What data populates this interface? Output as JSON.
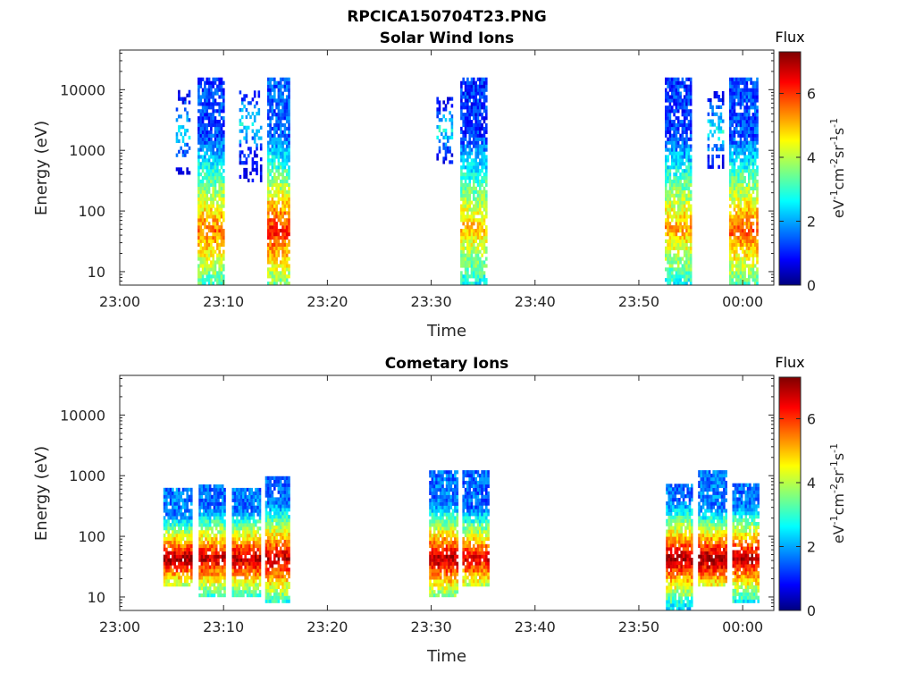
{
  "figure_title": "RPCICA150704T23.PNG",
  "colors": {
    "axis": "#262626",
    "background": "#ffffff",
    "colormap": [
      "#00007f",
      "#0000ff",
      "#007fff",
      "#00ffff",
      "#7fff7f",
      "#ffff00",
      "#ff7f00",
      "#ff0000",
      "#7f0000"
    ]
  },
  "chart_data": [
    {
      "type": "heatmap",
      "title": "Solar Wind Ions",
      "xlabel": "Time",
      "ylabel": "Energy (eV)",
      "x_ticks": [
        "23:00",
        "23:10",
        "23:20",
        "23:30",
        "23:40",
        "23:50",
        "00:00"
      ],
      "x_range_minutes": [
        0,
        63
      ],
      "y_ticks": [
        "10",
        "100",
        "1000",
        "10000"
      ],
      "y_scale": "log",
      "y_range_eV": [
        6,
        45000
      ],
      "colorbar": {
        "label": "Flux",
        "unit": "eV-1cm-2sr-1s-1",
        "ticks": [
          "0",
          "2",
          "4",
          "6"
        ],
        "range": [
          0,
          7.3
        ]
      },
      "blobs": [
        {
          "t_start": 5.4,
          "t_end": 6.8,
          "e_low": 400,
          "e_high": 9000,
          "peak_flux": 2.6,
          "peak_energy": 2000,
          "density": 0.35
        },
        {
          "t_start": 7.5,
          "t_end": 9.9,
          "e_low": 6,
          "e_high": 15000,
          "peak_flux": 5.6,
          "peak_energy": 45,
          "density": 0.85
        },
        {
          "t_start": 11.5,
          "t_end": 13.6,
          "e_low": 300,
          "e_high": 9000,
          "peak_flux": 2.6,
          "peak_energy": 2500,
          "density": 0.35
        },
        {
          "t_start": 14.2,
          "t_end": 16.3,
          "e_low": 6,
          "e_high": 15000,
          "peak_flux": 6.2,
          "peak_energy": 45,
          "density": 0.85
        },
        {
          "t_start": 30.5,
          "t_end": 32.0,
          "e_low": 600,
          "e_high": 7000,
          "peak_flux": 2.8,
          "peak_energy": 2000,
          "density": 0.45
        },
        {
          "t_start": 32.8,
          "t_end": 35.3,
          "e_low": 6,
          "e_high": 15000,
          "peak_flux": 5.0,
          "peak_energy": 50,
          "density": 0.85
        },
        {
          "t_start": 52.5,
          "t_end": 55.0,
          "e_low": 6,
          "e_high": 15000,
          "peak_flux": 5.2,
          "peak_energy": 50,
          "density": 0.85
        },
        {
          "t_start": 56.6,
          "t_end": 58.2,
          "e_low": 500,
          "e_high": 9000,
          "peak_flux": 2.8,
          "peak_energy": 2000,
          "density": 0.4
        },
        {
          "t_start": 58.7,
          "t_end": 61.4,
          "e_low": 6,
          "e_high": 15000,
          "peak_flux": 5.8,
          "peak_energy": 45,
          "density": 0.85
        }
      ]
    },
    {
      "type": "heatmap",
      "title": "Cometary Ions",
      "xlabel": "Time",
      "ylabel": "Energy (eV)",
      "x_ticks": [
        "23:00",
        "23:10",
        "23:20",
        "23:30",
        "23:40",
        "23:50",
        "00:00"
      ],
      "x_range_minutes": [
        0,
        63
      ],
      "y_ticks": [
        "10",
        "100",
        "1000",
        "10000"
      ],
      "y_scale": "log",
      "y_range_eV": [
        6,
        45000
      ],
      "colorbar": {
        "label": "Flux",
        "unit": "eV-1cm-2sr-1s-1",
        "ticks": [
          "0",
          "2",
          "4",
          "6"
        ],
        "range": [
          0,
          7.3
        ]
      },
      "blobs": [
        {
          "t_start": 4.2,
          "t_end": 6.9,
          "e_low": 15,
          "e_high": 600,
          "peak_flux": 7.2,
          "peak_energy": 40,
          "density": 0.9
        },
        {
          "t_start": 7.6,
          "t_end": 10.0,
          "e_low": 10,
          "e_high": 700,
          "peak_flux": 6.8,
          "peak_energy": 40,
          "density": 0.9
        },
        {
          "t_start": 10.8,
          "t_end": 13.4,
          "e_low": 10,
          "e_high": 600,
          "peak_flux": 7.0,
          "peak_energy": 40,
          "density": 0.9
        },
        {
          "t_start": 14.0,
          "t_end": 16.3,
          "e_low": 8,
          "e_high": 900,
          "peak_flux": 6.9,
          "peak_energy": 40,
          "density": 0.9
        },
        {
          "t_start": 29.8,
          "t_end": 32.5,
          "e_low": 10,
          "e_high": 1100,
          "peak_flux": 7.0,
          "peak_energy": 40,
          "density": 0.9
        },
        {
          "t_start": 33.0,
          "t_end": 35.5,
          "e_low": 15,
          "e_high": 1100,
          "peak_flux": 6.6,
          "peak_energy": 40,
          "density": 0.9
        },
        {
          "t_start": 52.6,
          "t_end": 55.2,
          "e_low": 6,
          "e_high": 700,
          "peak_flux": 7.0,
          "peak_energy": 40,
          "density": 0.9
        },
        {
          "t_start": 55.7,
          "t_end": 58.5,
          "e_low": 15,
          "e_high": 1100,
          "peak_flux": 7.2,
          "peak_energy": 40,
          "density": 0.9
        },
        {
          "t_start": 59.0,
          "t_end": 61.5,
          "e_low": 8,
          "e_high": 700,
          "peak_flux": 7.0,
          "peak_energy": 40,
          "density": 0.9
        }
      ]
    }
  ]
}
